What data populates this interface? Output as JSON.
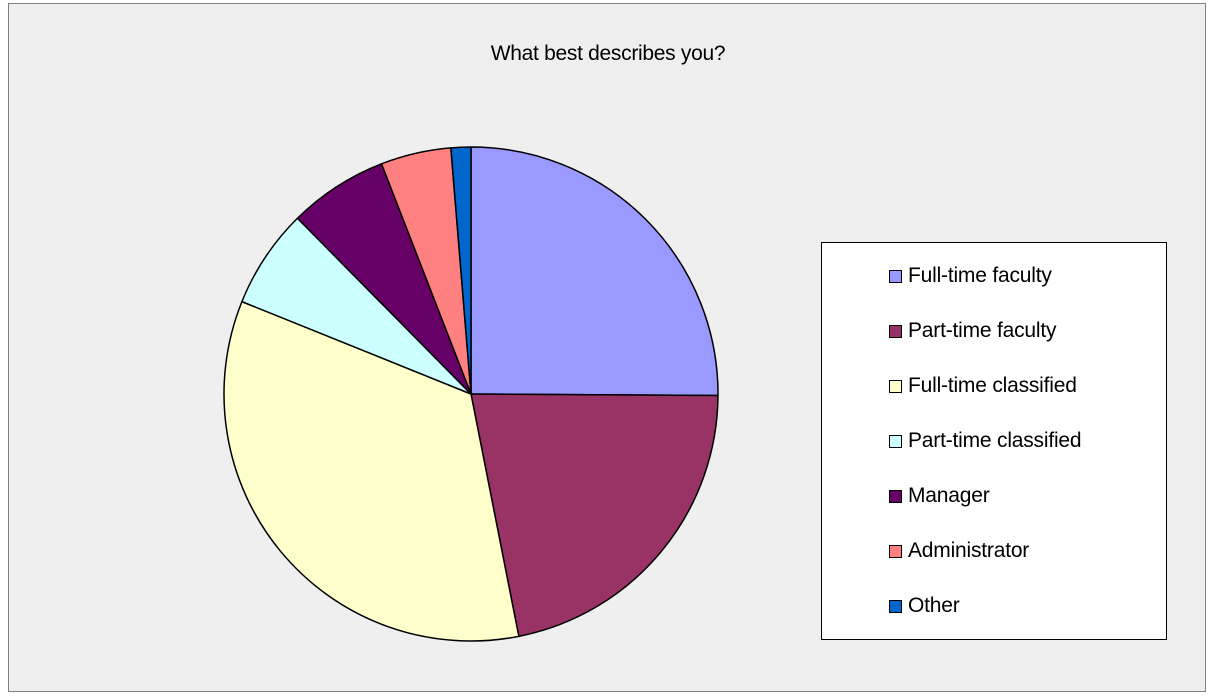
{
  "chart_data": {
    "type": "pie",
    "title": "What best describes you?",
    "legend_position": "right",
    "start_angle": "12 o'clock",
    "direction": "clockwise",
    "slices": [
      {
        "label": "Full-time faculty",
        "value": 25.1,
        "color": "#9999ff"
      },
      {
        "label": "Part-time faculty",
        "value": 21.8,
        "color": "#993366"
      },
      {
        "label": "Full-time classified",
        "value": 34.2,
        "color": "#ffffcc"
      },
      {
        "label": "Part-time classified",
        "value": 6.5,
        "color": "#ccffff"
      },
      {
        "label": "Manager",
        "value": 6.5,
        "color": "#660066"
      },
      {
        "label": "Administrator",
        "value": 4.6,
        "color": "#ff8080"
      },
      {
        "label": "Other",
        "value": 1.3,
        "color": "#0066cc"
      }
    ]
  }
}
